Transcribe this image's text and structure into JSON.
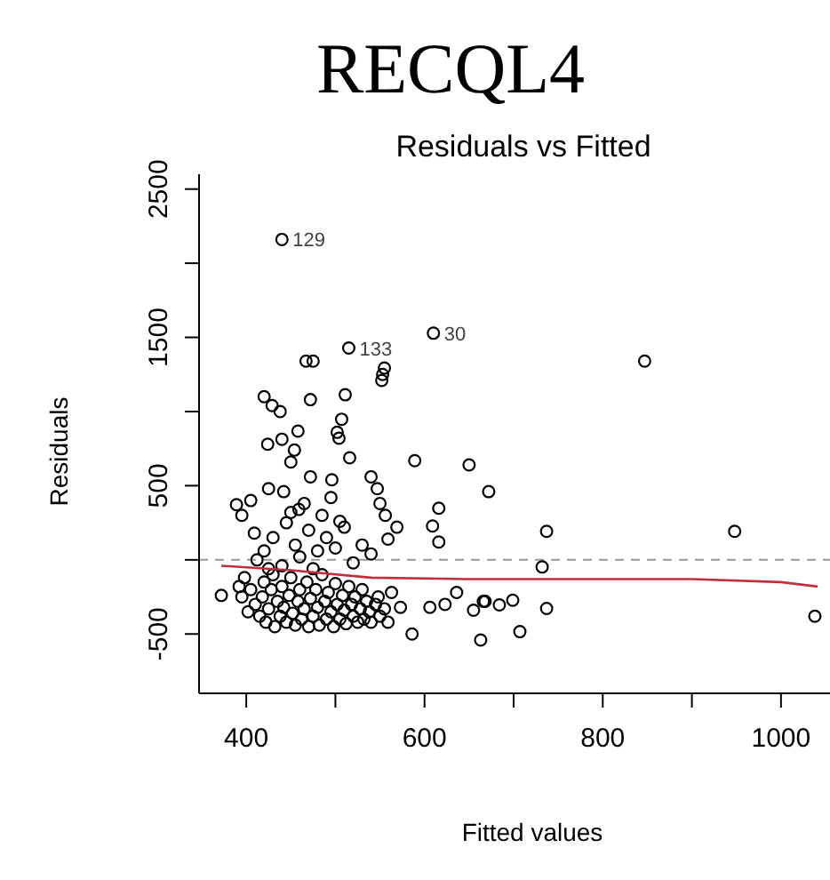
{
  "chart_data": {
    "type": "scatter",
    "title": "RECQL4",
    "subtitle": "Residuals vs Fitted",
    "xlabel": "Fitted values",
    "ylabel": "Residuals",
    "marker": "circle",
    "xlim": [
      347,
      1055
    ],
    "ylim": [
      -900,
      2600
    ],
    "xticks": [
      400,
      {
        "value": 500,
        "label": null
      },
      600,
      {
        "value": 700,
        "label": null
      },
      800,
      {
        "value": 900,
        "label": null
      },
      1000
    ],
    "yticks": [
      -500,
      {
        "value": 0,
        "label": null
      },
      500,
      {
        "value": 1000,
        "label": null
      },
      1500,
      {
        "value": 2000,
        "label": null
      },
      2500
    ],
    "series": [
      {
        "color": "#000000",
        "x": [
          440,
          515,
          610,
          467,
          475,
          555,
          553,
          552,
          420,
          429,
          438,
          472,
          511,
          507,
          502,
          504,
          424,
          440,
          458,
          454,
          450,
          516,
          589,
          650,
          672,
          472,
          496,
          540,
          547,
          550,
          556,
          616,
          609,
          616,
          569,
          559,
          389,
          405,
          395,
          409,
          425,
          442,
          459,
          372,
          586,
          663,
          636,
          623,
          606,
          563,
          573,
          559,
          655,
          666,
          847,
          737,
          948,
          732,
          737,
          668,
          684,
          699,
          707,
          1038,
          405,
          410,
          415,
          418,
          420,
          422,
          425,
          428,
          430,
          432,
          435,
          438,
          440,
          442,
          445,
          448,
          450,
          452,
          455,
          458,
          460,
          462,
          465,
          468,
          470,
          472,
          475,
          478,
          480,
          482,
          485,
          488,
          490,
          492,
          495,
          498,
          500,
          502,
          505,
          508,
          510,
          512,
          515,
          518,
          520,
          522,
          525,
          528,
          530,
          532,
          535,
          538,
          540,
          545,
          550,
          555,
          548,
          475,
          440,
          460,
          420,
          430,
          445,
          455,
          470,
          480,
          490,
          500,
          510,
          520,
          530,
          540,
          450,
          465,
          485,
          495,
          505,
          425,
          412,
          398,
          395,
          402,
          392
        ],
        "values": [
          2160,
          1428,
          1528,
          1340,
          1340,
          1293,
          1250,
          1210,
          1100,
          1040,
          1000,
          1080,
          1113,
          948,
          860,
          820,
          780,
          813,
          868,
          740,
          660,
          688,
          669,
          640,
          460,
          560,
          540,
          560,
          480,
          380,
          300,
          348,
          228,
          120,
          220,
          140,
          372,
          400,
          300,
          180,
          480,
          460,
          340,
          -240,
          -500,
          -540,
          -220,
          -300,
          -320,
          -220,
          -320,
          -420,
          -340,
          -280,
          1340,
          192,
          192,
          -48,
          -328,
          -280,
          -304,
          -272,
          -484,
          -380,
          -200,
          -300,
          -380,
          -250,
          -150,
          -420,
          -330,
          -200,
          -100,
          -450,
          -280,
          -380,
          -180,
          -320,
          -420,
          -240,
          -120,
          -360,
          -440,
          -280,
          -200,
          -400,
          -330,
          -150,
          -450,
          -260,
          -380,
          -200,
          -320,
          -440,
          -100,
          -280,
          -400,
          -220,
          -350,
          -450,
          -160,
          -300,
          -400,
          -240,
          -340,
          -430,
          -180,
          -300,
          -380,
          -250,
          -420,
          -330,
          -200,
          -400,
          -280,
          -350,
          -420,
          -300,
          -380,
          -330,
          -250,
          -60,
          -40,
          20,
          60,
          150,
          250,
          100,
          200,
          60,
          150,
          80,
          220,
          -20,
          100,
          40,
          320,
          380,
          300,
          420,
          260,
          -60,
          0,
          -120,
          -250,
          -350,
          -180
        ]
      },
      {
        "type": "line",
        "color": "#c0303c",
        "line_style": "solid",
        "marker": "none",
        "x": [
          372,
          450,
          540,
          650,
          900,
          1000,
          1041
        ],
        "values": [
          -40,
          -70,
          -120,
          -130,
          -130,
          -150,
          -180
        ]
      }
    ],
    "ref_lines": [
      {
        "axis": "y",
        "value": 0,
        "color": "#999999",
        "line_style": "dashed"
      }
    ],
    "annotations": [
      {
        "text": "129",
        "x": 440,
        "y": 2160
      },
      {
        "text": "133",
        "x": 515,
        "y": 1428
      },
      {
        "text": "30",
        "x": 610,
        "y": 1528
      }
    ]
  }
}
